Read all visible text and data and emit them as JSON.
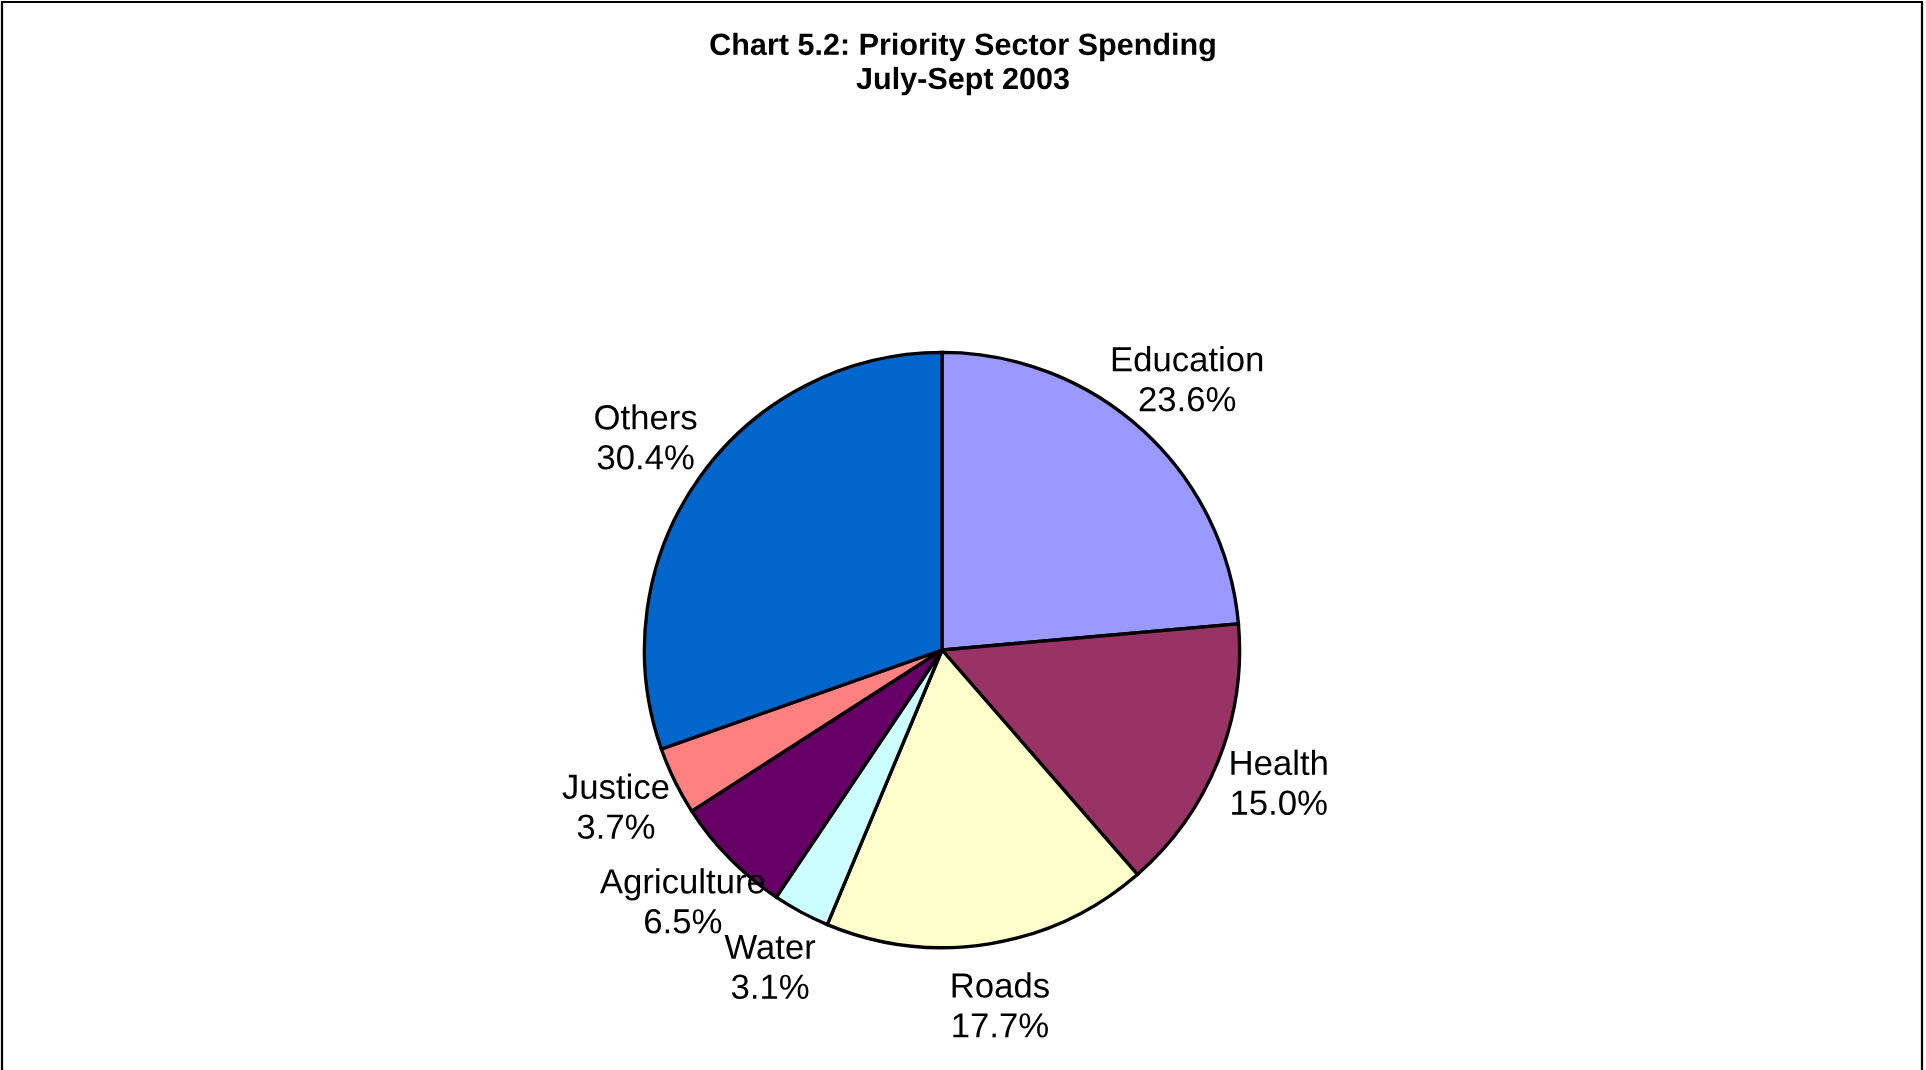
{
  "chart_data": {
    "type": "pie",
    "title": "Chart 5.2: Priority Sector Spending\nJuly-Sept 2003",
    "categories": [
      "Education",
      "Health",
      "Roads",
      "Water",
      "Agriculture",
      "Justice",
      "Others"
    ],
    "values": [
      23.6,
      15.0,
      17.7,
      3.1,
      6.5,
      3.7,
      30.4
    ],
    "value_labels": [
      "23.6%",
      "15.0%",
      "17.7%",
      "3.1%",
      "6.5%",
      "3.7%",
      "30.4%"
    ],
    "colors": [
      "#9999ff",
      "#993366",
      "#ffffcc",
      "#ccffff",
      "#660066",
      "#ff8080",
      "#0066cc"
    ],
    "legend": false
  }
}
